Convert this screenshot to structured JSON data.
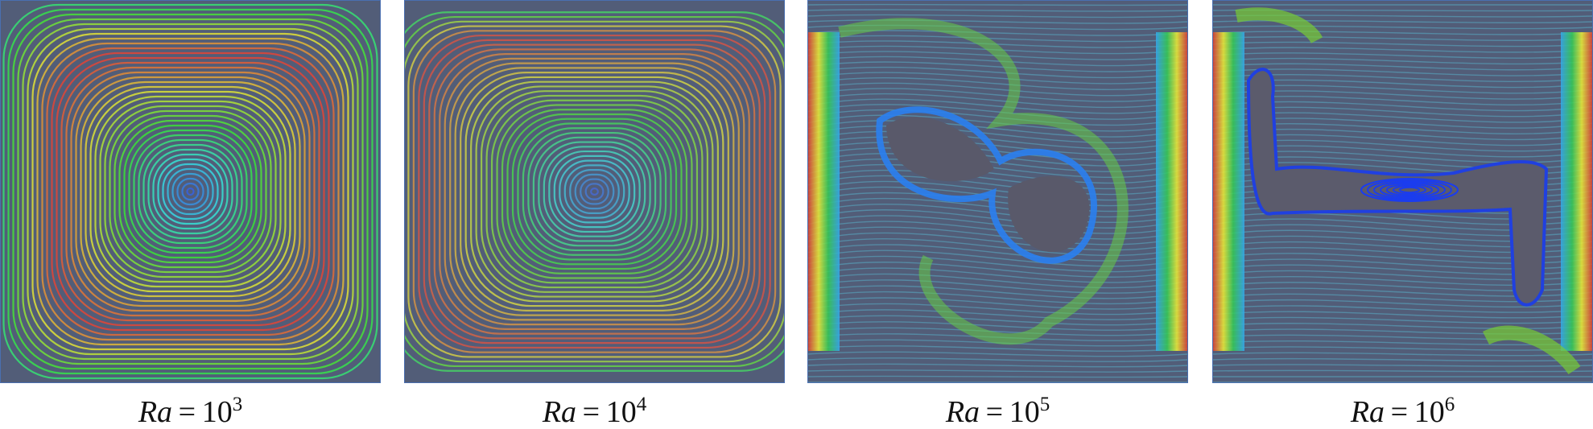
{
  "panels": [
    {
      "variable": "Ra",
      "equals": "=",
      "base": "10",
      "exponent": "3"
    },
    {
      "variable": "Ra",
      "equals": "=",
      "base": "10",
      "exponent": "4"
    },
    {
      "variable": "Ra",
      "equals": "=",
      "base": "10",
      "exponent": "5"
    },
    {
      "variable": "Ra",
      "equals": "=",
      "base": "10",
      "exponent": "6"
    }
  ]
}
